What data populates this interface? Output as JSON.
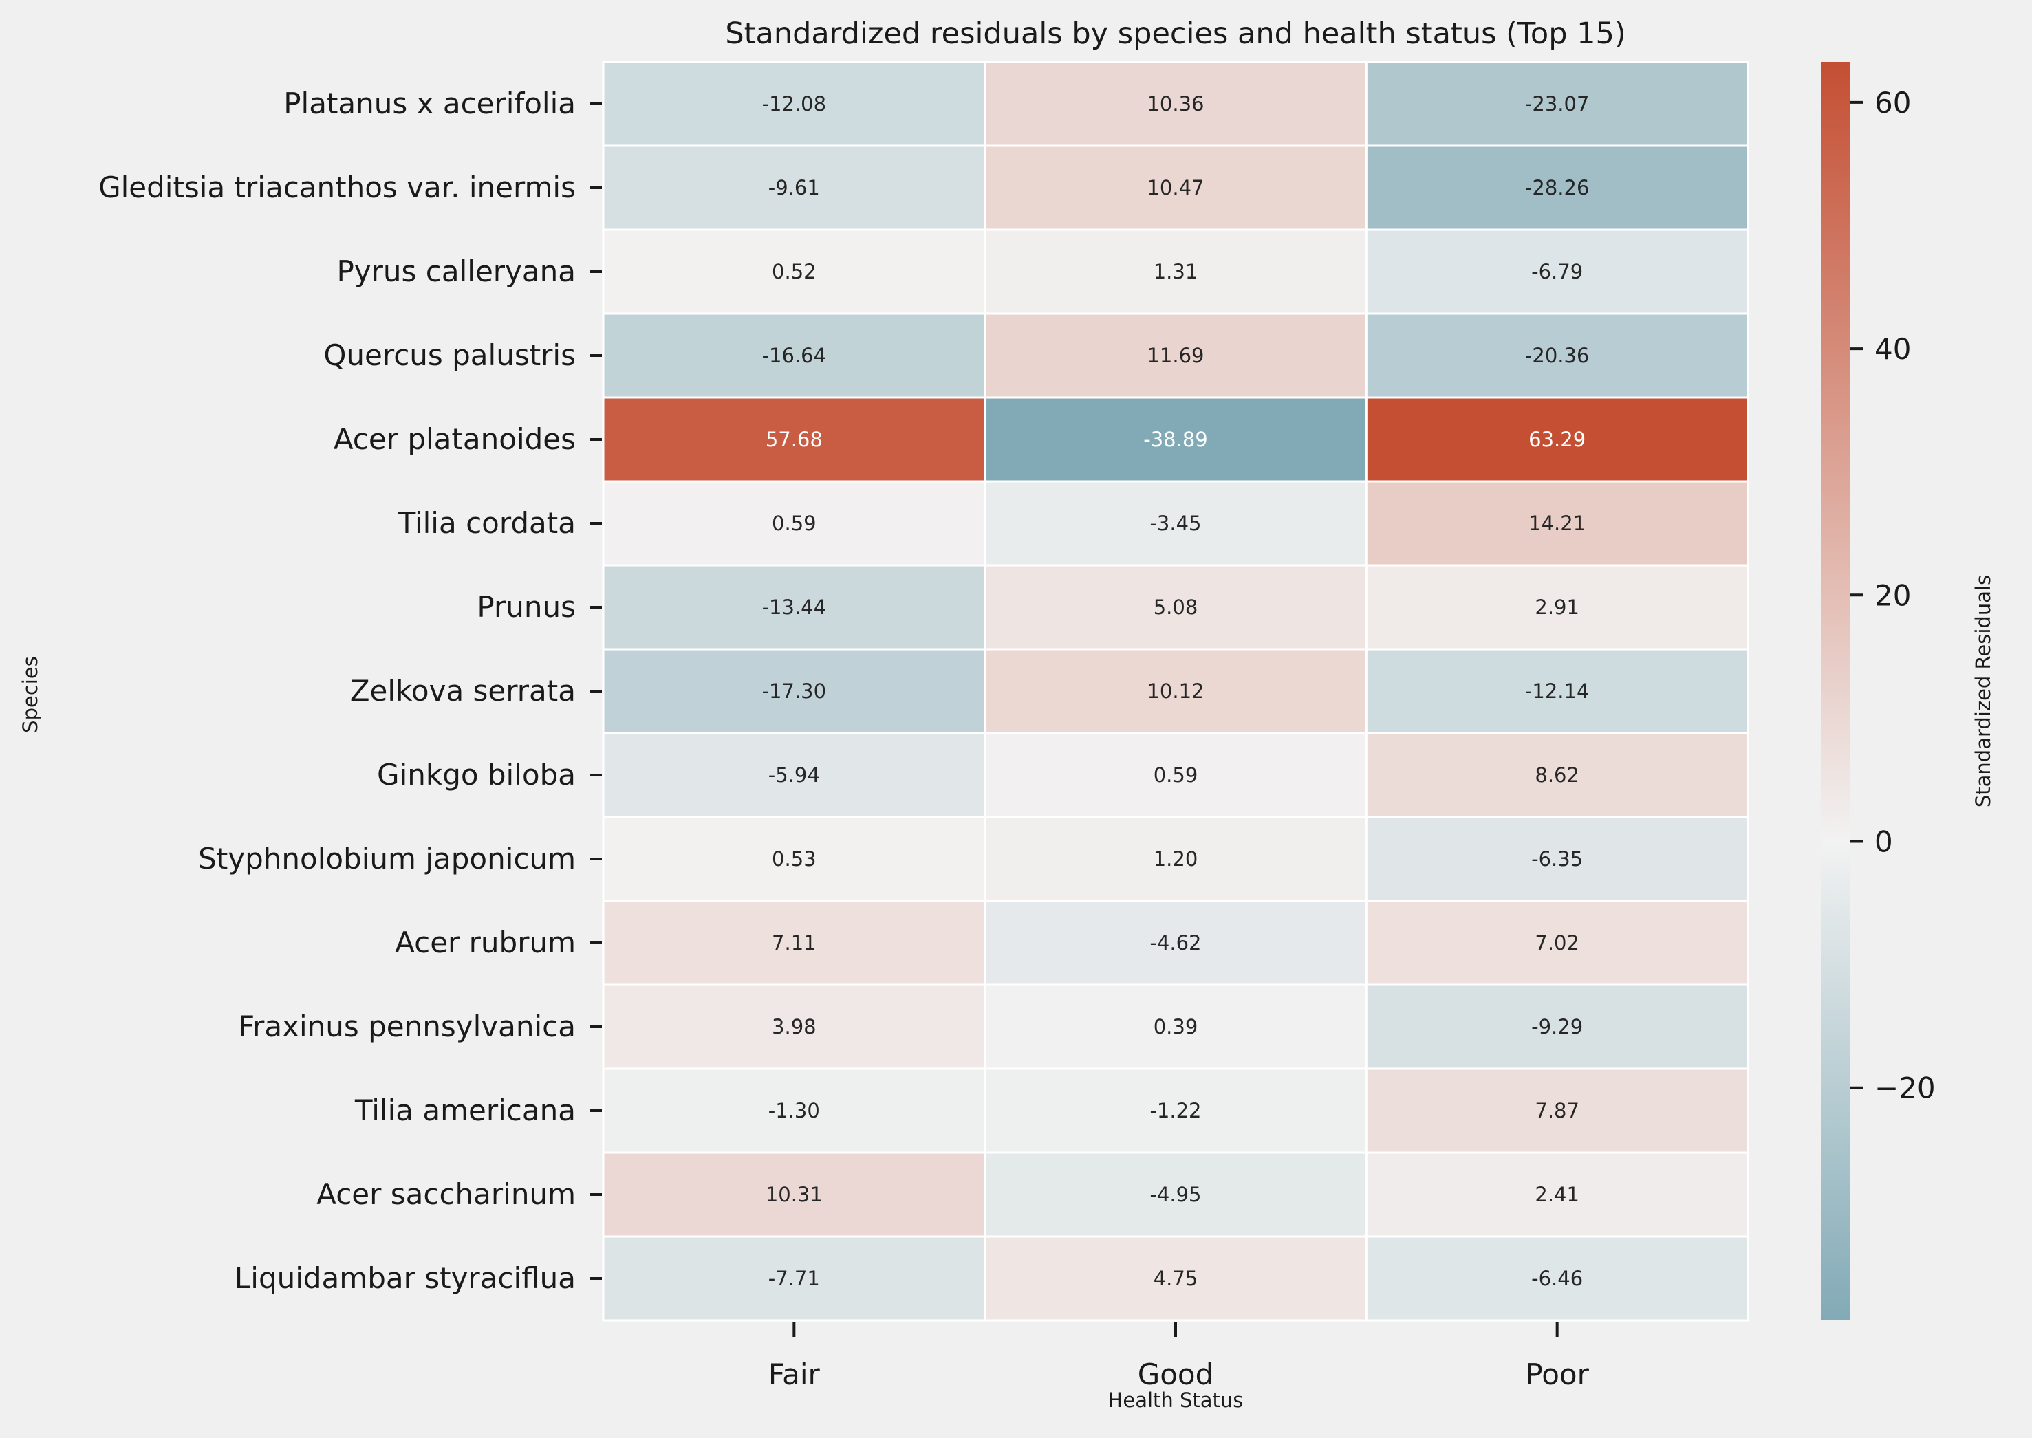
{
  "chart_data": {
    "type": "heatmap",
    "title": "Standardized residuals by species and health status (Top 15)",
    "xlabel": "Health Status",
    "ylabel": "Species",
    "colorbar_label": "Standardized Residuals",
    "x_categories": [
      "Fair",
      "Good",
      "Poor"
    ],
    "y_categories": [
      "Platanus x acerifolia",
      "Gleditsia triacanthos var. inermis",
      "Pyrus calleryana",
      "Quercus palustris",
      "Acer platanoides",
      "Tilia cordata",
      "Prunus",
      "Zelkova serrata",
      "Ginkgo biloba",
      "Styphnolobium japonicum",
      "Acer rubrum",
      "Fraxinus pennsylvanica",
      "Tilia americana",
      "Acer saccharinum",
      "Liquidambar styraciflua"
    ],
    "values": [
      [
        -12.08,
        10.36,
        -23.07
      ],
      [
        -9.61,
        10.47,
        -28.26
      ],
      [
        0.52,
        1.31,
        -6.79
      ],
      [
        -16.64,
        11.69,
        -20.36
      ],
      [
        57.68,
        -38.89,
        63.29
      ],
      [
        0.59,
        -3.45,
        14.21
      ],
      [
        -13.44,
        5.08,
        2.91
      ],
      [
        -17.3,
        10.12,
        -12.14
      ],
      [
        -5.94,
        0.59,
        8.62
      ],
      [
        0.53,
        1.2,
        -6.35
      ],
      [
        7.11,
        -4.62,
        7.02
      ],
      [
        3.98,
        0.39,
        -9.29
      ],
      [
        -1.3,
        -1.22,
        7.87
      ],
      [
        10.31,
        -4.95,
        2.41
      ],
      [
        -7.71,
        4.75,
        -6.46
      ]
    ],
    "value_labels": [
      [
        "-12.08",
        "10.36",
        "-23.07"
      ],
      [
        "-9.61",
        "10.47",
        "-28.26"
      ],
      [
        "0.52",
        "1.31",
        "-6.79"
      ],
      [
        "-16.64",
        "11.69",
        "-20.36"
      ],
      [
        "57.68",
        "-38.89",
        "63.29"
      ],
      [
        "0.59",
        "-3.45",
        "14.21"
      ],
      [
        "-13.44",
        "5.08",
        "2.91"
      ],
      [
        "-17.30",
        "10.12",
        "-12.14"
      ],
      [
        "-5.94",
        "0.59",
        "8.62"
      ],
      [
        "0.53",
        "1.20",
        "-6.35"
      ],
      [
        "7.11",
        "-4.62",
        "7.02"
      ],
      [
        "3.98",
        "0.39",
        "-9.29"
      ],
      [
        "-1.30",
        "-1.22",
        "7.87"
      ],
      [
        "10.31",
        "-4.95",
        "2.41"
      ],
      [
        "-7.71",
        "4.75",
        "-6.46"
      ]
    ],
    "color_range": [
      -38.89,
      63.29
    ],
    "colorbar_ticks": [
      {
        "value": 60,
        "label": "60"
      },
      {
        "value": 40,
        "label": "40"
      },
      {
        "value": 20,
        "label": "20"
      },
      {
        "value": 0,
        "label": "0"
      },
      {
        "value": -20,
        "label": "−20"
      }
    ],
    "colors": {
      "negative": "#82aab6",
      "center": "#f2f2f2",
      "positive": "#c44f33",
      "background": "#f0f0f0",
      "text_dark": "#262626",
      "text_light": "#ffffff"
    }
  }
}
